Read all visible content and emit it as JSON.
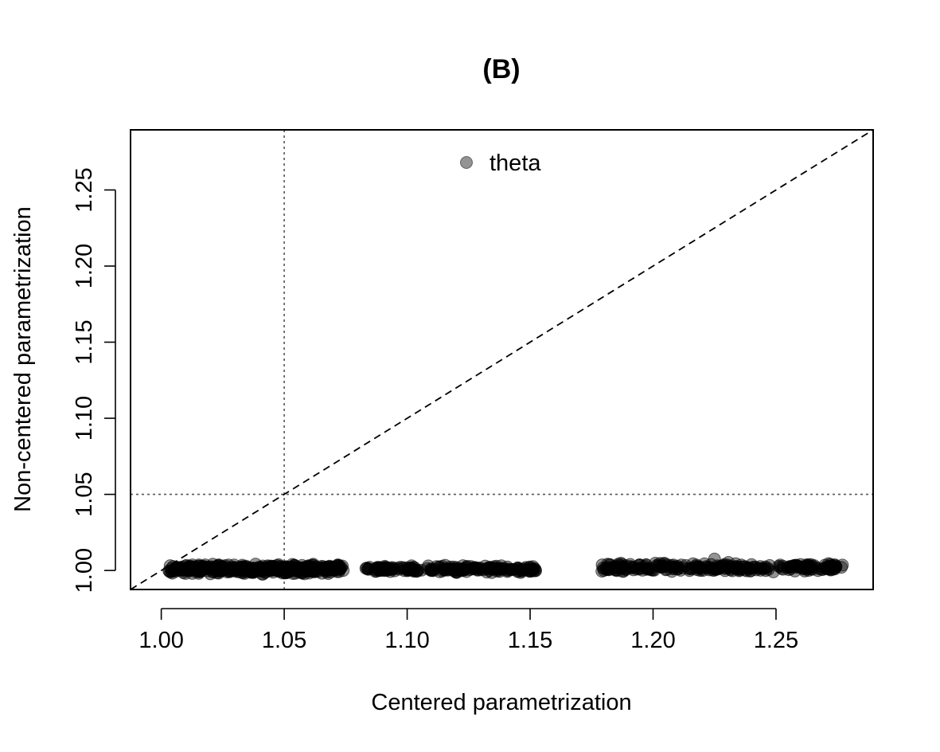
{
  "chart_data": {
    "type": "scatter",
    "title": "(B)",
    "xlabel": "Centered parametrization",
    "ylabel": "Non-centered parametrization",
    "xlim": [
      0.9875,
      1.2895
    ],
    "ylim": [
      0.9875,
      1.2895
    ],
    "x_ticks": [
      "1.00",
      "1.05",
      "1.10",
      "1.15",
      "1.20",
      "1.25"
    ],
    "y_ticks": [
      "1.00",
      "1.05",
      "1.10",
      "1.15",
      "1.20",
      "1.25"
    ],
    "reference_lines": {
      "vertical_x": 1.05,
      "horizontal_y": 1.05,
      "identity_diagonal": true
    },
    "legend": {
      "position": "top-center",
      "entries": [
        "theta"
      ]
    },
    "point_color": "#000000",
    "point_opacity": 0.42,
    "series": [
      {
        "name": "theta",
        "clusters": [
          {
            "x_range": [
              1.003,
              1.074
            ],
            "y_center": 1.001,
            "y_spread": 0.004,
            "count": 420
          },
          {
            "x_range": [
              1.083,
              1.153
            ],
            "y_center": 1.0008,
            "y_spread": 0.003,
            "count": 200
          },
          {
            "x_range": [
              1.179,
              1.277
            ],
            "y_center": 1.0018,
            "y_spread": 0.004,
            "count": 260
          }
        ],
        "points": [
          {
            "x": 1.084,
            "y": 1.001
          },
          {
            "x": 1.087,
            "y": 1.0005
          },
          {
            "x": 1.09,
            "y": 1.0
          },
          {
            "x": 1.152,
            "y": 1.001
          },
          {
            "x": 1.18,
            "y": 1.0
          },
          {
            "x": 1.182,
            "y": 1.002
          },
          {
            "x": 1.188,
            "y": 1.001
          },
          {
            "x": 1.225,
            "y": 1.0075
          },
          {
            "x": 1.272,
            "y": 1.004
          },
          {
            "x": 1.277,
            "y": 1.0035
          },
          {
            "x": 1.274,
            "y": 1.002
          },
          {
            "x": 1.074,
            "y": 1.0
          }
        ]
      }
    ]
  }
}
